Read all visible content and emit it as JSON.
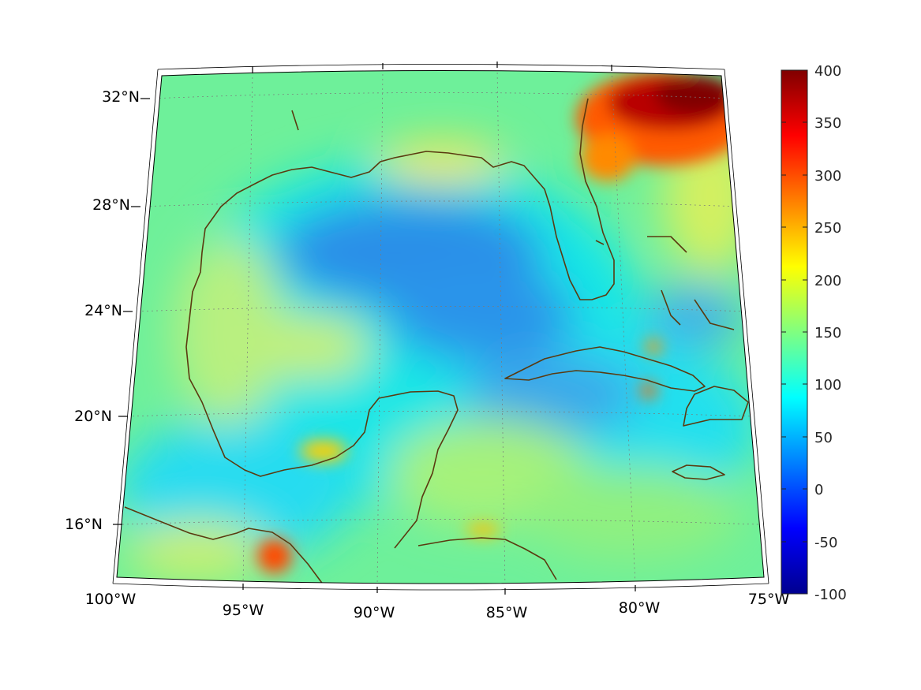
{
  "map": {
    "region": "Gulf of Mexico and Caribbean",
    "projection": "conic",
    "lon_range": [
      -100,
      -75
    ],
    "lat_range": [
      14,
      32.5
    ],
    "grid": true,
    "coastline_color": "#5a3a10",
    "longitude_labels": [
      "100°W",
      "95°W",
      "90°W",
      "85°W",
      "80°W",
      "75°W"
    ],
    "latitude_labels": [
      "16°N",
      "20°N",
      "24°N",
      "28°N",
      "32°N"
    ]
  },
  "colorbar": {
    "colormap": "jet",
    "min": -100,
    "max": 400,
    "tick_labels": [
      "400",
      "350",
      "300",
      "250",
      "200",
      "150",
      "100",
      "50",
      "0",
      "-50",
      "-100"
    ],
    "colors": [
      "#800000",
      "#ff0000",
      "#ffff00",
      "#00ffff",
      "#0000ff",
      "#00008f"
    ]
  }
}
